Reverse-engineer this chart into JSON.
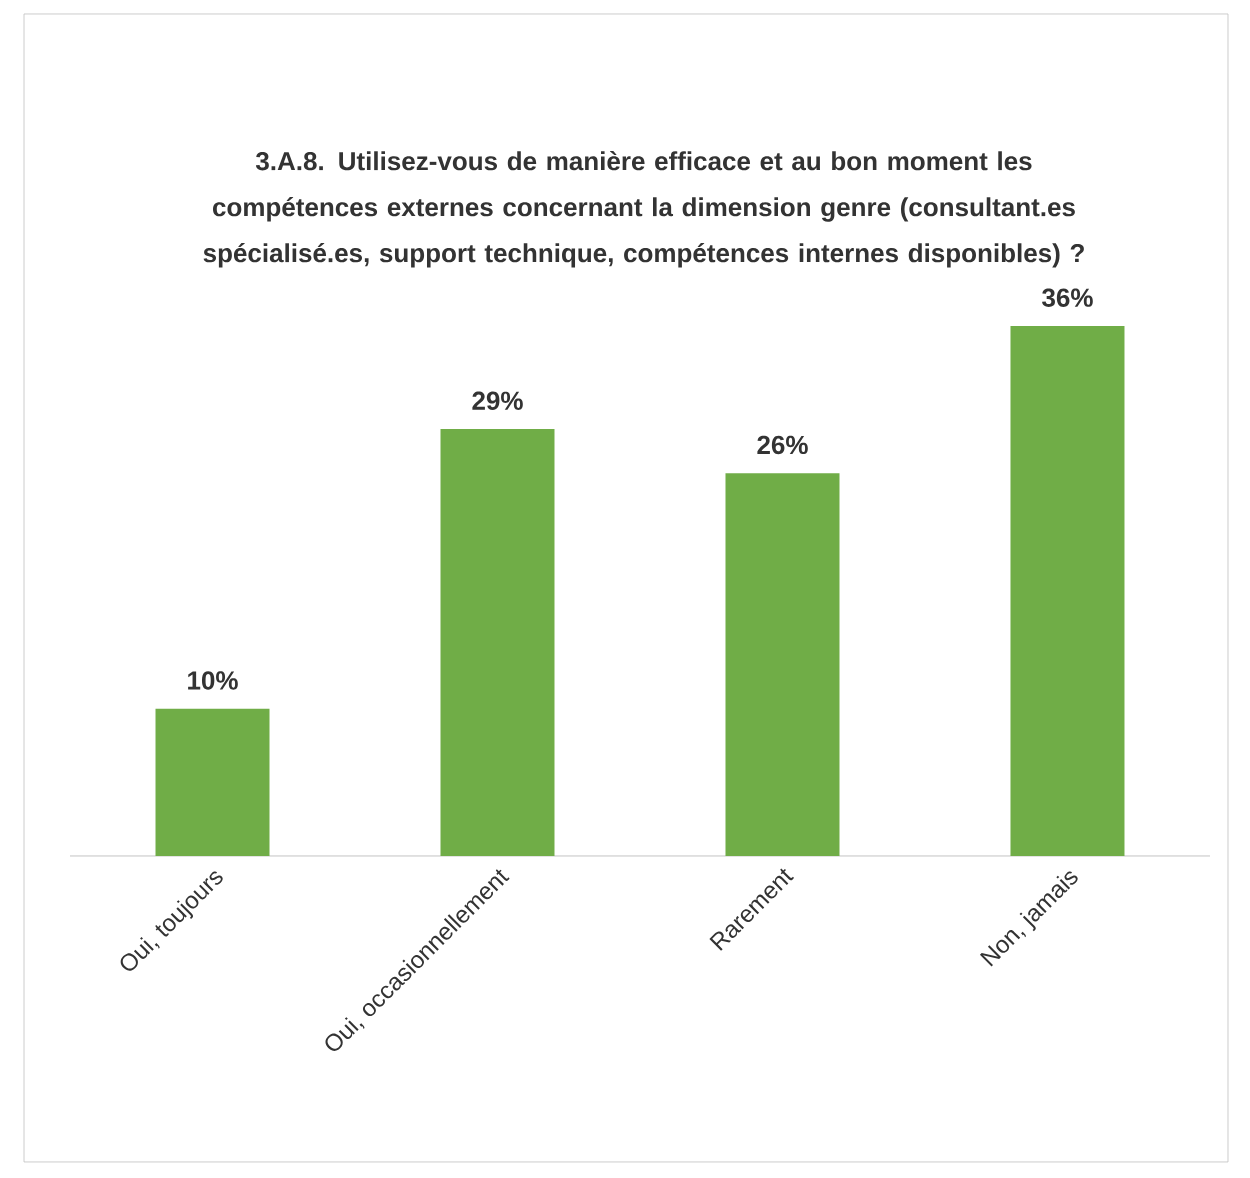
{
  "chart_data": {
    "type": "bar",
    "title": "3.A.8. Utilisez-vous de manière efficace et au bon moment les compétences externes concernant la dimension genre (consultant.es spécialisé.es, support technique, compétences internes disponibles) ?",
    "categories": [
      "Oui, toujours",
      "Oui, occasionnellement",
      "Rarement",
      "Non, jamais"
    ],
    "values": [
      10,
      29,
      26,
      36
    ],
    "color": "#70ad47",
    "value_labels": [
      "10%",
      "29%",
      "26%",
      "36%"
    ]
  }
}
